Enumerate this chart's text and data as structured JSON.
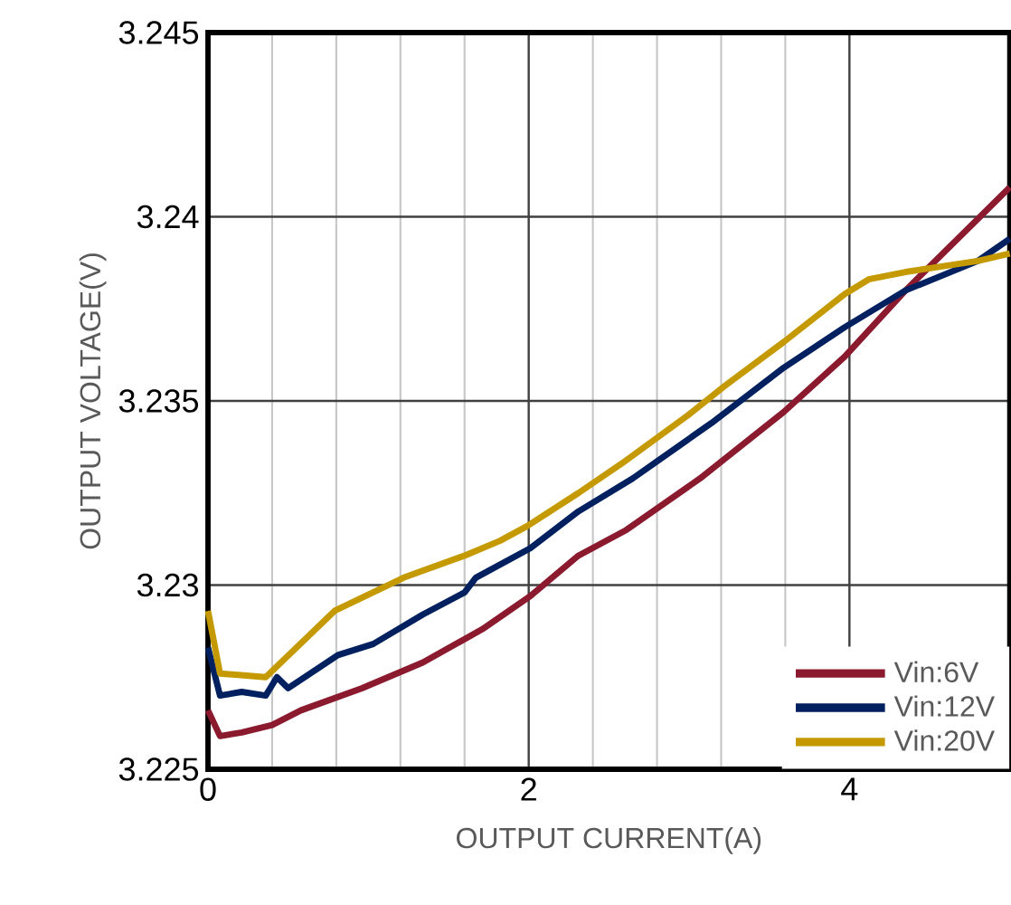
{
  "chart_data": {
    "type": "line",
    "xlabel": "OUTPUT CURRENT(A)",
    "ylabel": "OUTPUT VOLTAGE(V)",
    "xlim": [
      0,
      5
    ],
    "ylim": [
      3.225,
      3.245
    ],
    "xticks": [
      0,
      2,
      4
    ],
    "yticks": [
      3.225,
      3.23,
      3.235,
      3.24,
      3.245
    ],
    "grid": true,
    "legend": "bottom right",
    "marker": "none",
    "line_style": "solid",
    "series": [
      {
        "name": "Vin:6V",
        "color": "#8b1a2e",
        "x": [
          0,
          0.075,
          0.21,
          0.4,
          0.58,
          0.96,
          1.34,
          1.71,
          2.01,
          2.31,
          2.61,
          3.07,
          3.59,
          3.97,
          4.35,
          5
        ],
        "values": [
          3.2266,
          3.2259,
          3.226,
          3.2262,
          3.2266,
          3.2272,
          3.2279,
          3.2288,
          3.2297,
          3.2308,
          3.2315,
          3.2329,
          3.2347,
          3.2362,
          3.238,
          3.2408
        ]
      },
      {
        "name": "Vin:12V",
        "color": "#002060",
        "x": [
          0,
          0.075,
          0.21,
          0.36,
          0.43,
          0.5,
          0.81,
          1.03,
          1.34,
          1.6,
          1.67,
          2.01,
          2.31,
          2.65,
          3.14,
          3.59,
          3.97,
          4.35,
          4.8,
          5
        ],
        "values": [
          3.2283,
          3.227,
          3.2271,
          3.227,
          3.2275,
          3.2272,
          3.2281,
          3.2284,
          3.2292,
          3.2298,
          3.2302,
          3.231,
          3.232,
          3.2329,
          3.2344,
          3.2359,
          3.237,
          3.238,
          3.2388,
          3.2394
        ]
      },
      {
        "name": "Vin:20V",
        "color": "#c49a00",
        "x": [
          0,
          0.075,
          0.36,
          0.79,
          1.22,
          1.6,
          1.82,
          1.99,
          2.31,
          2.58,
          2.99,
          3.22,
          3.59,
          3.97,
          4.12,
          4.35,
          4.8,
          5
        ],
        "values": [
          3.2293,
          3.2276,
          3.2275,
          3.2293,
          3.2302,
          3.2308,
          3.2312,
          3.2316,
          3.2325,
          3.2333,
          3.2346,
          3.2354,
          3.2366,
          3.2379,
          3.2383,
          3.2385,
          3.2388,
          3.239
        ]
      }
    ]
  }
}
